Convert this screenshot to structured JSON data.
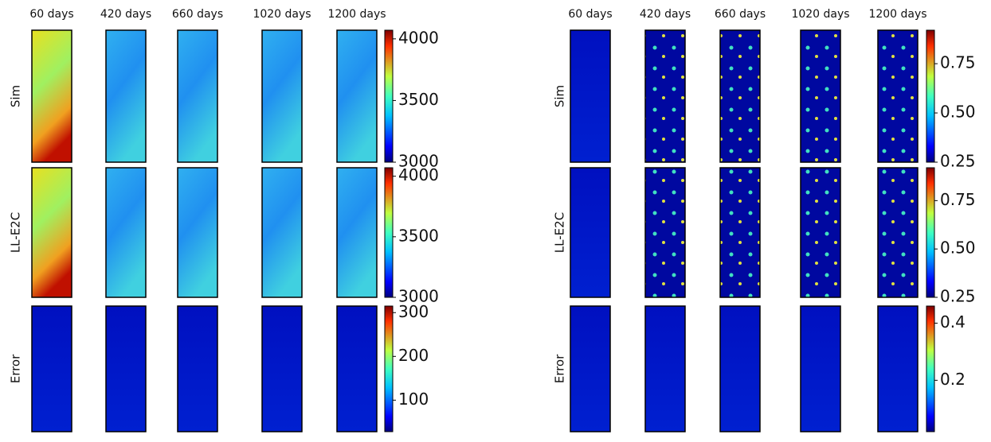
{
  "panels": [
    {
      "columns": [
        "60 days",
        "420 days",
        "660 days",
        "1020 days",
        "1200 days"
      ],
      "rows": [
        {
          "label": "Sim",
          "colorbar": {
            "lim": [
              3000,
              4070
            ],
            "ticks": [
              3000,
              3500,
              4000
            ]
          }
        },
        {
          "label": "LL-E2C",
          "colorbar": {
            "lim": [
              3000,
              4070
            ],
            "ticks": [
              3000,
              3500,
              4000
            ]
          }
        },
        {
          "label": "Error",
          "colorbar": {
            "lim": [
              28,
              315
            ],
            "ticks": [
              100,
              200,
              300
            ]
          }
        }
      ]
    },
    {
      "columns": [
        "60 days",
        "420 days",
        "660 days",
        "1020 days",
        "1200 days"
      ],
      "rows": [
        {
          "label": "Sim",
          "colorbar": {
            "lim": [
              0.25,
              0.92
            ],
            "ticks": [
              0.25,
              {
                "value": 0.5,
                "label": "0.50"
              },
              0.75
            ]
          }
        },
        {
          "label": "LL-E2C",
          "colorbar": {
            "lim": [
              0.25,
              0.92
            ],
            "ticks": [
              0.25,
              {
                "value": 0.5,
                "label": "0.50"
              },
              0.75
            ]
          }
        },
        {
          "label": "Error",
          "colorbar": {
            "lim": [
              0.02,
              0.46
            ],
            "ticks": [
              0.2,
              0.4
            ]
          }
        }
      ]
    }
  ]
}
